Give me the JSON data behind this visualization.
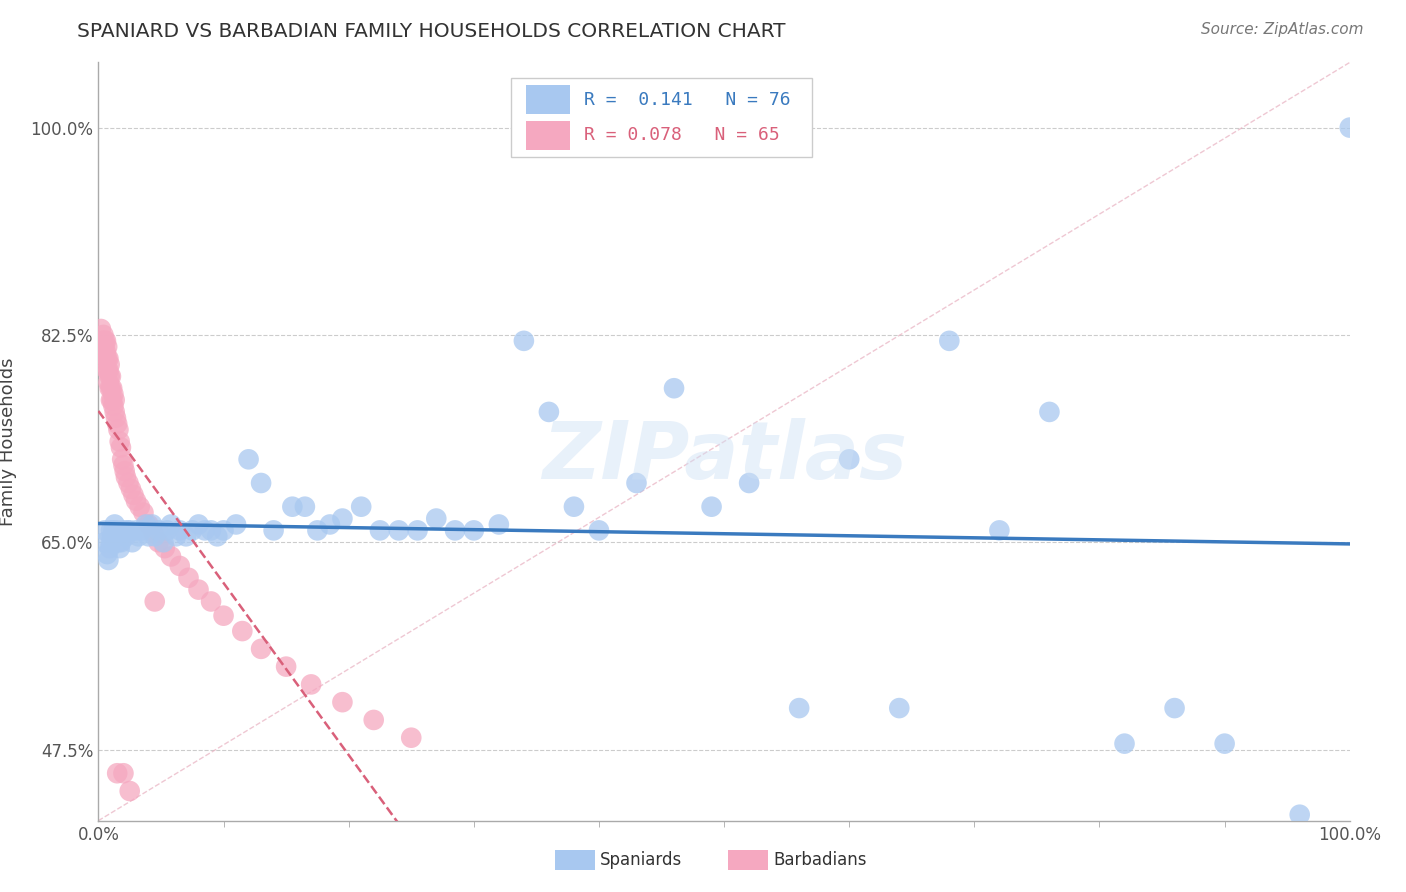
{
  "title": "SPANIARD VS BARBADIAN FAMILY HOUSEHOLDS CORRELATION CHART",
  "source_text": "Source: ZipAtlas.com",
  "ylabel": "Family Households",
  "watermark": "ZIPatlas",
  "xlim": [
    0.0,
    1.0
  ],
  "ylim": [
    0.415,
    1.055
  ],
  "spaniard_R": 0.141,
  "spaniard_N": 76,
  "barbadian_R": 0.078,
  "barbadian_N": 65,
  "spaniard_color": "#a8c8f0",
  "barbadian_color": "#f5a8c0",
  "spaniard_line_color": "#3a7abf",
  "barbadian_line_color": "#d9607a",
  "ref_line_color": "#f0b0c0",
  "grid_color": "#cccccc",
  "background_color": "#ffffff",
  "legend_box_color": "#ffffff",
  "legend_border_color": "#cccccc",
  "spaniards_x": [
    0.005,
    0.005,
    0.007,
    0.008,
    0.009,
    0.01,
    0.01,
    0.011,
    0.012,
    0.013,
    0.014,
    0.015,
    0.016,
    0.017,
    0.018,
    0.02,
    0.022,
    0.023,
    0.025,
    0.027,
    0.03,
    0.032,
    0.035,
    0.038,
    0.04,
    0.043,
    0.045,
    0.048,
    0.052,
    0.055,
    0.058,
    0.062,
    0.065,
    0.07,
    0.075,
    0.08,
    0.085,
    0.09,
    0.095,
    0.1,
    0.11,
    0.12,
    0.13,
    0.14,
    0.155,
    0.165,
    0.175,
    0.185,
    0.195,
    0.21,
    0.225,
    0.24,
    0.255,
    0.27,
    0.285,
    0.3,
    0.32,
    0.34,
    0.36,
    0.38,
    0.4,
    0.43,
    0.46,
    0.49,
    0.52,
    0.56,
    0.6,
    0.64,
    0.68,
    0.72,
    0.76,
    0.82,
    0.86,
    0.9,
    0.96,
    1.0
  ],
  "spaniards_y": [
    0.66,
    0.65,
    0.64,
    0.635,
    0.645,
    0.65,
    0.66,
    0.655,
    0.66,
    0.665,
    0.655,
    0.66,
    0.65,
    0.645,
    0.65,
    0.66,
    0.655,
    0.66,
    0.66,
    0.65,
    0.66,
    0.655,
    0.66,
    0.665,
    0.655,
    0.665,
    0.655,
    0.66,
    0.65,
    0.66,
    0.665,
    0.655,
    0.66,
    0.655,
    0.66,
    0.665,
    0.66,
    0.66,
    0.655,
    0.66,
    0.665,
    0.72,
    0.7,
    0.66,
    0.68,
    0.68,
    0.66,
    0.665,
    0.67,
    0.68,
    0.66,
    0.66,
    0.66,
    0.67,
    0.66,
    0.66,
    0.665,
    0.82,
    0.76,
    0.68,
    0.66,
    0.7,
    0.78,
    0.68,
    0.7,
    0.51,
    0.72,
    0.51,
    0.82,
    0.66,
    0.76,
    0.48,
    0.51,
    0.48,
    0.42,
    1.0
  ],
  "barbadians_x": [
    0.002,
    0.003,
    0.003,
    0.004,
    0.004,
    0.005,
    0.005,
    0.005,
    0.006,
    0.006,
    0.006,
    0.007,
    0.007,
    0.007,
    0.008,
    0.008,
    0.008,
    0.009,
    0.009,
    0.009,
    0.01,
    0.01,
    0.01,
    0.011,
    0.011,
    0.012,
    0.012,
    0.013,
    0.013,
    0.014,
    0.015,
    0.016,
    0.017,
    0.018,
    0.019,
    0.02,
    0.021,
    0.022,
    0.024,
    0.026,
    0.028,
    0.03,
    0.033,
    0.036,
    0.04,
    0.044,
    0.048,
    0.053,
    0.058,
    0.065,
    0.072,
    0.08,
    0.09,
    0.1,
    0.115,
    0.13,
    0.15,
    0.17,
    0.195,
    0.22,
    0.25,
    0.015,
    0.02,
    0.025,
    0.045
  ],
  "barbadians_y": [
    0.83,
    0.82,
    0.815,
    0.825,
    0.81,
    0.82,
    0.815,
    0.805,
    0.82,
    0.81,
    0.8,
    0.815,
    0.805,
    0.795,
    0.805,
    0.795,
    0.785,
    0.8,
    0.79,
    0.78,
    0.79,
    0.78,
    0.77,
    0.78,
    0.77,
    0.775,
    0.765,
    0.77,
    0.76,
    0.755,
    0.75,
    0.745,
    0.735,
    0.73,
    0.72,
    0.715,
    0.71,
    0.705,
    0.7,
    0.695,
    0.69,
    0.685,
    0.68,
    0.675,
    0.665,
    0.658,
    0.65,
    0.645,
    0.638,
    0.63,
    0.62,
    0.61,
    0.6,
    0.588,
    0.575,
    0.56,
    0.545,
    0.53,
    0.515,
    0.5,
    0.485,
    0.455,
    0.455,
    0.44,
    0.6
  ]
}
